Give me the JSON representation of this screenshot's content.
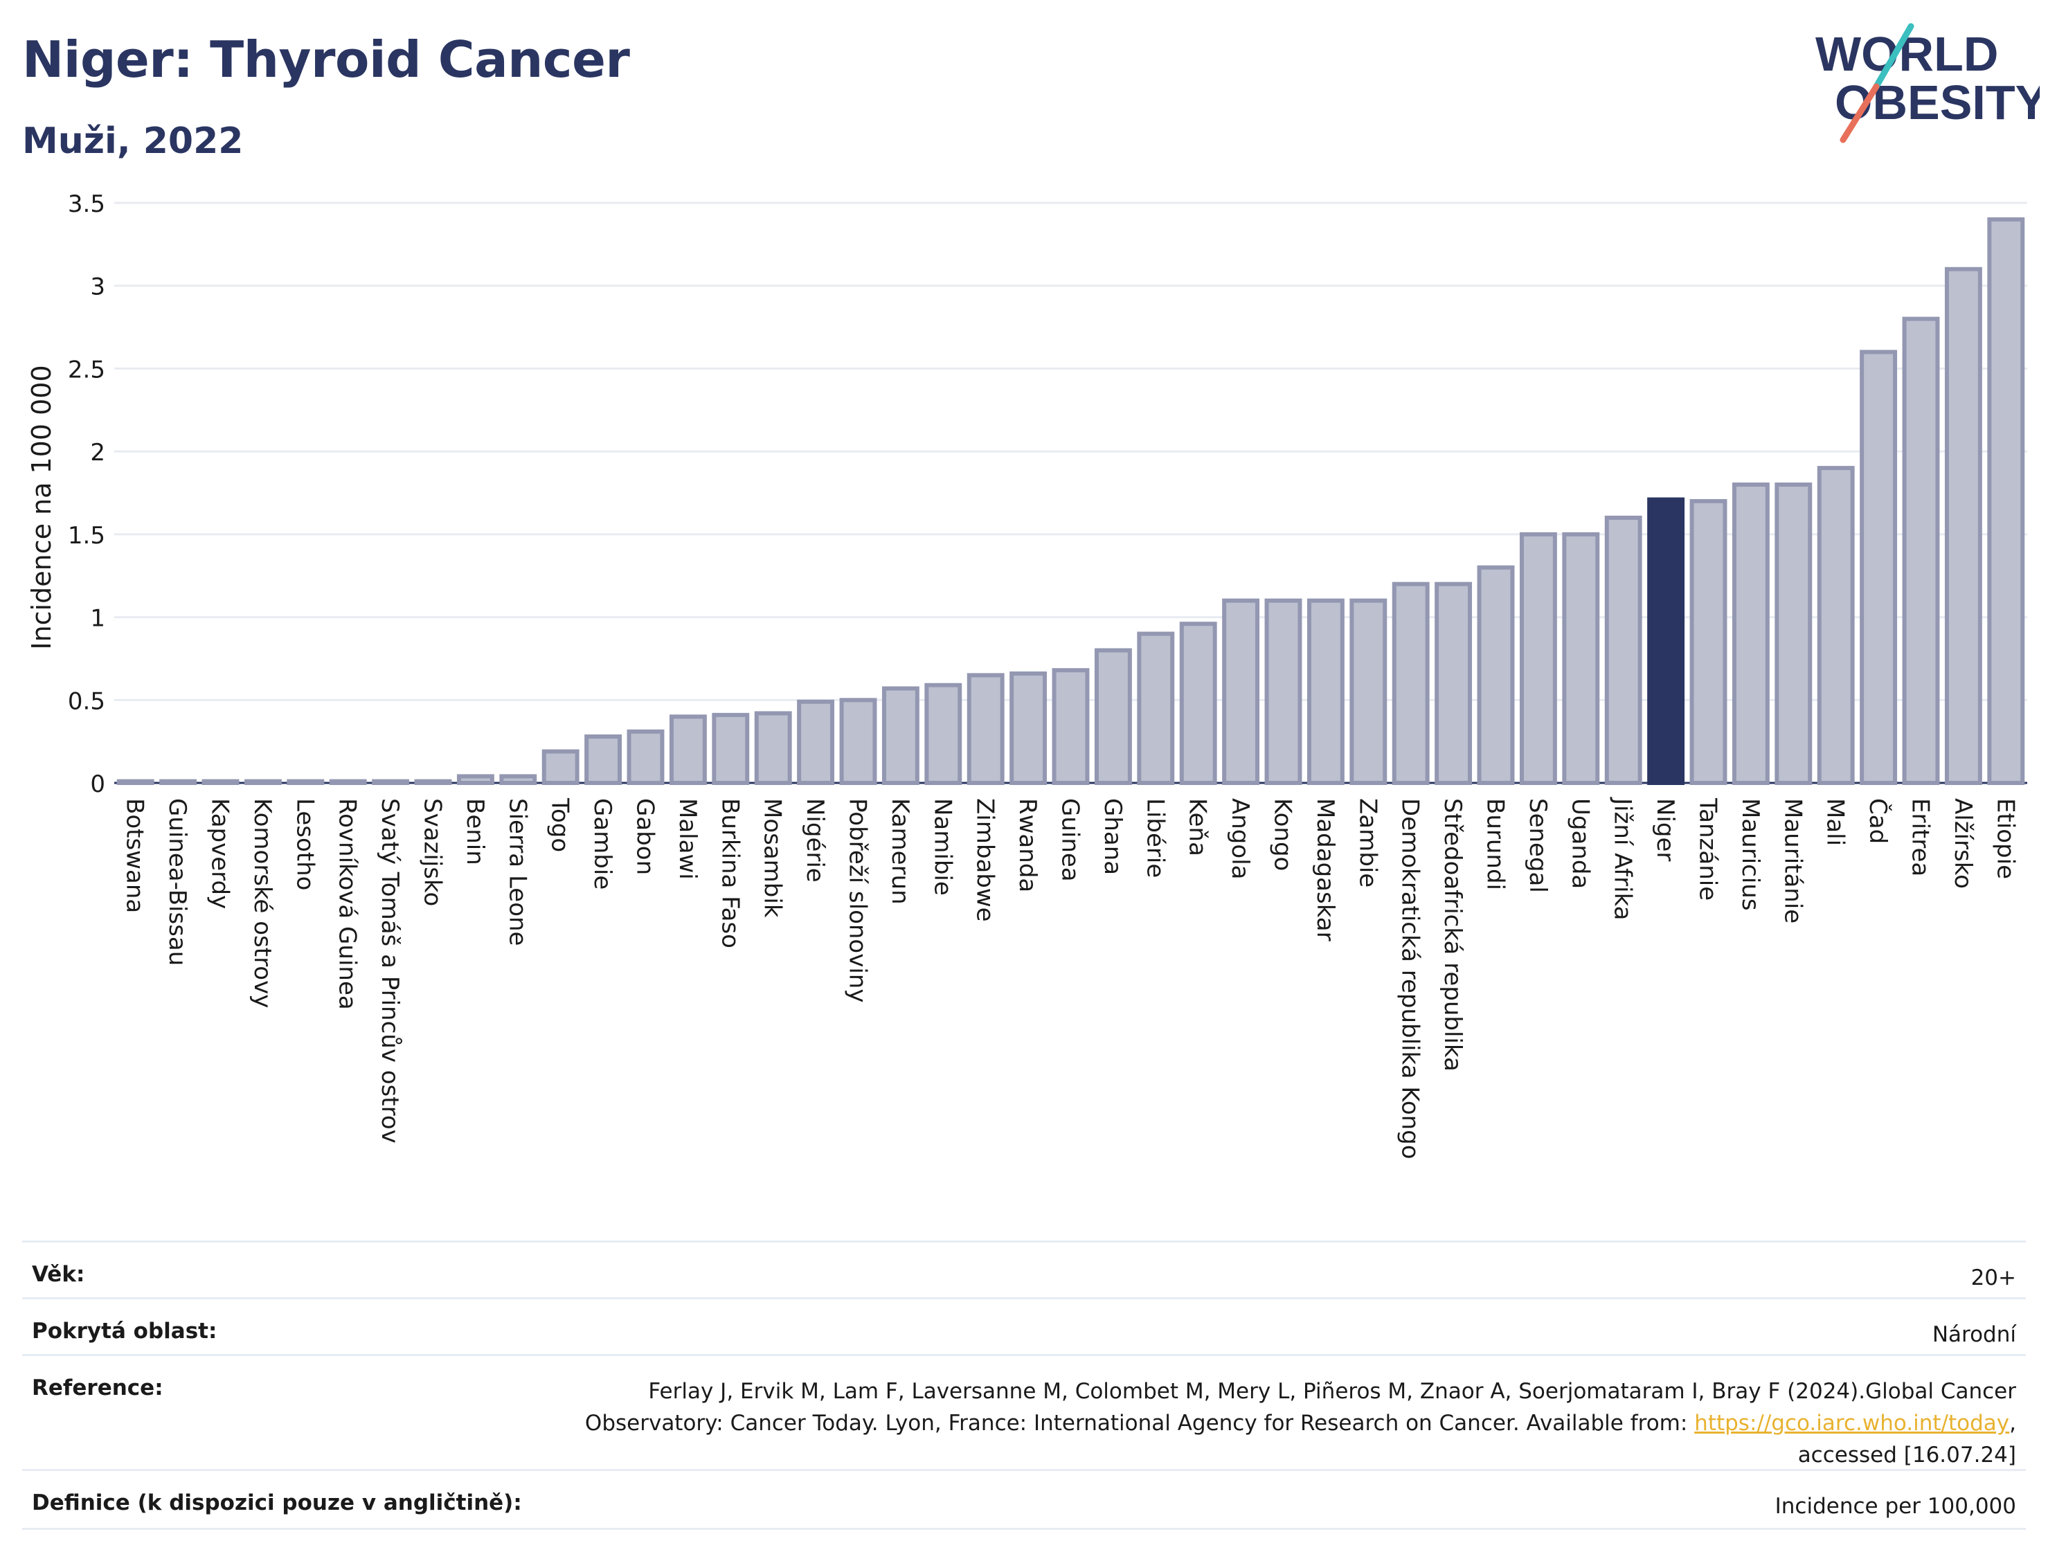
{
  "header": {
    "title": "Niger: Thyroid Cancer",
    "subtitle": "Muži, 2022",
    "logo_line1": "WORLD",
    "logo_line2": "OBESITY"
  },
  "colors": {
    "bar": "#bcc0cf",
    "bar_stroke": "#9397b1",
    "highlight": "#2a3561",
    "grid": "#e8ebf1",
    "logo_teal": "#3bbfbf",
    "logo_coral": "#e8705a"
  },
  "chart_data": {
    "type": "bar",
    "ylabel": "Incidence na 100 000",
    "ylim": [
      0,
      3.5
    ],
    "yticks": [
      "0",
      "0.5",
      "1",
      "1.5",
      "2",
      "2.5",
      "3",
      "3.5"
    ],
    "highlight": "Niger",
    "categories": [
      "Botswana",
      "Guinea-Bissau",
      "Kapverdy",
      "Komorské ostrovy",
      "Lesotho",
      "Rovníková Guinea",
      "Svatý Tomáš a Princův ostrov",
      "Svazijsko",
      "Benin",
      "Sierra Leone",
      "Togo",
      "Gambie",
      "Gabon",
      "Malawi",
      "Burkina Faso",
      "Mosambik",
      "Nigérie",
      "Pobřeží slonoviny",
      "Kamerun",
      "Namibie",
      "Zimbabwe",
      "Rwanda",
      "Guinea",
      "Ghana",
      "Libérie",
      "Keňa",
      "Angola",
      "Kongo",
      "Madagaskar",
      "Zambie",
      "Demokratická republika Kongo",
      "Středoafrická republika",
      "Burundi",
      "Senegal",
      "Uganda",
      "Jižní Afrika",
      "Niger",
      "Tanzánie",
      "Mauricius",
      "Mauritánie",
      "Mali",
      "Čad",
      "Eritrea",
      "Alžírsko",
      "Etiopie"
    ],
    "values": [
      0.01,
      0.01,
      0.01,
      0.01,
      0.01,
      0.01,
      0.01,
      0.01,
      0.04,
      0.04,
      0.19,
      0.28,
      0.31,
      0.4,
      0.41,
      0.42,
      0.49,
      0.5,
      0.57,
      0.59,
      0.65,
      0.66,
      0.68,
      0.8,
      0.9,
      0.96,
      1.1,
      1.1,
      1.1,
      1.1,
      1.2,
      1.2,
      1.3,
      1.5,
      1.5,
      1.6,
      1.71,
      1.7,
      1.8,
      1.8,
      1.9,
      2.6,
      2.8,
      3.1,
      3.4
    ]
  },
  "info": {
    "age_label": "Věk:",
    "age_value": "20+",
    "area_label": "Pokrytá oblast:",
    "area_value": "Národní",
    "ref_label": "Reference:",
    "ref_line1": "Ferlay J, Ervik M, Lam F, Laversanne M, Colombet M, Mery L, Piñeros M, Znaor A, Soerjomataram I, Bray F (2024).Global Cancer",
    "ref_line2_text": "Observatory: Cancer Today. Lyon, France: International Agency for Research on Cancer. Available from: ",
    "ref_link": "https://gco.iarc.who.int/today",
    "ref_line2_end": ",",
    "ref_line3": "accessed [16.07.24]",
    "def_label": "Definice (k dispozici pouze v angličtině):",
    "def_value": "Incidence per 100,000"
  }
}
